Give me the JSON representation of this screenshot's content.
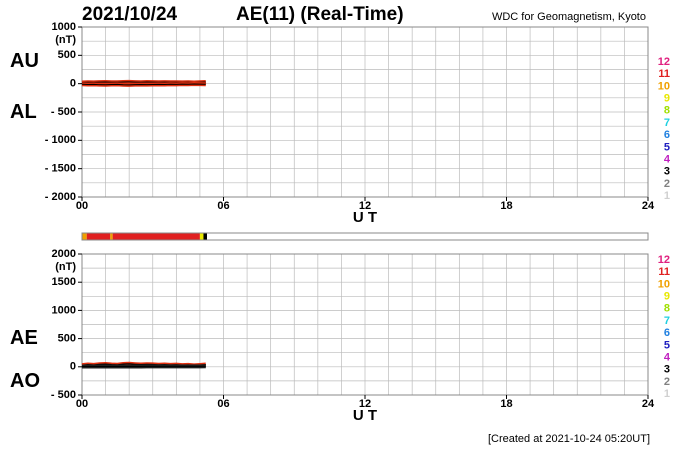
{
  "header": {
    "date": "2021/10/24",
    "title": "AE(11) (Real-Time)",
    "source": "WDC for Geomagnetism, Kyoto"
  },
  "footer": "[Created at 2021-10-24 05:20UT]",
  "stations": [
    {
      "name": "12",
      "color": "#e0207f"
    },
    {
      "name": "11",
      "color": "#e02020"
    },
    {
      "name": "10",
      "color": "#f0a000"
    },
    {
      "name": "9",
      "color": "#e8e800"
    },
    {
      "name": "8",
      "color": "#a0e000"
    },
    {
      "name": "7",
      "color": "#20d0e0"
    },
    {
      "name": "6",
      "color": "#2080e0"
    },
    {
      "name": "5",
      "color": "#2020c0"
    },
    {
      "name": "4",
      "color": "#c020c0"
    },
    {
      "name": "3",
      "color": "#000000"
    },
    {
      "name": "2",
      "color": "#808080"
    },
    {
      "name": "1",
      "color": "#d0d0d0"
    }
  ],
  "station_bar": {
    "xlim": [
      0,
      24
    ],
    "segments": [
      {
        "start": 0,
        "end": 0.2,
        "color": "#f0a000"
      },
      {
        "start": 0.2,
        "end": 1.2,
        "color": "#e02020"
      },
      {
        "start": 1.2,
        "end": 1.3,
        "color": "#f0a000"
      },
      {
        "start": 1.3,
        "end": 5.0,
        "color": "#e02020"
      },
      {
        "start": 5.0,
        "end": 5.15,
        "color": "#e8e800"
      },
      {
        "start": 5.15,
        "end": 5.3,
        "color": "#000000"
      }
    ]
  },
  "chart_data": [
    {
      "type": "line",
      "xlabel": "U T",
      "unit": "(nT)",
      "grid": true,
      "minor_grid": {
        "x": 1,
        "y": 250
      },
      "xlim": [
        0,
        24
      ],
      "xticks": [
        {
          "value": 0,
          "label": "00"
        },
        {
          "value": 6,
          "label": "06"
        },
        12,
        18,
        24
      ],
      "ylim": [
        -2000,
        1000
      ],
      "yticks": [
        1000,
        500,
        0,
        {
          "value": -500,
          "label": "- 500"
        },
        {
          "value": -1000,
          "label": "- 1000"
        },
        {
          "value": -1500,
          "label": "- 1500"
        },
        {
          "value": -2000,
          "label": "- 2000"
        }
      ],
      "x": [
        0,
        0.25,
        0.5,
        0.75,
        1,
        1.25,
        1.5,
        1.75,
        2,
        2.25,
        2.5,
        2.75,
        3,
        3.25,
        3.5,
        3.75,
        4,
        4.25,
        4.5,
        4.75,
        5,
        5.25
      ],
      "series": [
        {
          "name": "AU",
          "color": "#e03010",
          "values": [
            20,
            25,
            22,
            28,
            30,
            26,
            24,
            30,
            32,
            28,
            26,
            30,
            28,
            25,
            27,
            24,
            26,
            22,
            25,
            20,
            24,
            30
          ]
        },
        {
          "name": "AL",
          "color": "#e03010",
          "values": [
            -10,
            -15,
            -12,
            -18,
            -20,
            -15,
            -12,
            -20,
            -22,
            -18,
            -14,
            -16,
            -15,
            -12,
            -14,
            -10,
            -12,
            -8,
            -10,
            -6,
            -8,
            -10
          ]
        }
      ]
    },
    {
      "type": "line",
      "xlabel": "U T",
      "unit": "(nT)",
      "grid": true,
      "minor_grid": {
        "x": 1,
        "y": 250
      },
      "xlim": [
        0,
        24
      ],
      "xticks": [
        {
          "value": 0,
          "label": "00"
        },
        {
          "value": 6,
          "label": "06"
        },
        12,
        18,
        24
      ],
      "ylim": [
        -500,
        2000
      ],
      "yticks": [
        2000,
        1500,
        1000,
        500,
        0,
        {
          "value": -500,
          "label": "- 500"
        }
      ],
      "x": [
        0,
        0.25,
        0.5,
        0.75,
        1,
        1.25,
        1.5,
        1.75,
        2,
        2.25,
        2.5,
        2.75,
        3,
        3.25,
        3.5,
        3.75,
        4,
        4.25,
        4.5,
        4.75,
        5,
        5.25
      ],
      "series": [
        {
          "name": "AE",
          "color": "#e03010",
          "values": [
            30,
            40,
            34,
            46,
            50,
            41,
            36,
            50,
            54,
            46,
            40,
            46,
            43,
            37,
            41,
            34,
            38,
            30,
            35,
            26,
            32,
            40
          ]
        },
        {
          "name": "AO",
          "color": "#202020",
          "values": [
            5,
            5,
            5,
            5,
            5,
            5.5,
            6,
            5,
            5,
            5,
            6,
            7,
            6.5,
            6.5,
            6.5,
            7,
            7,
            7,
            7.5,
            7,
            8,
            10
          ]
        }
      ]
    }
  ]
}
